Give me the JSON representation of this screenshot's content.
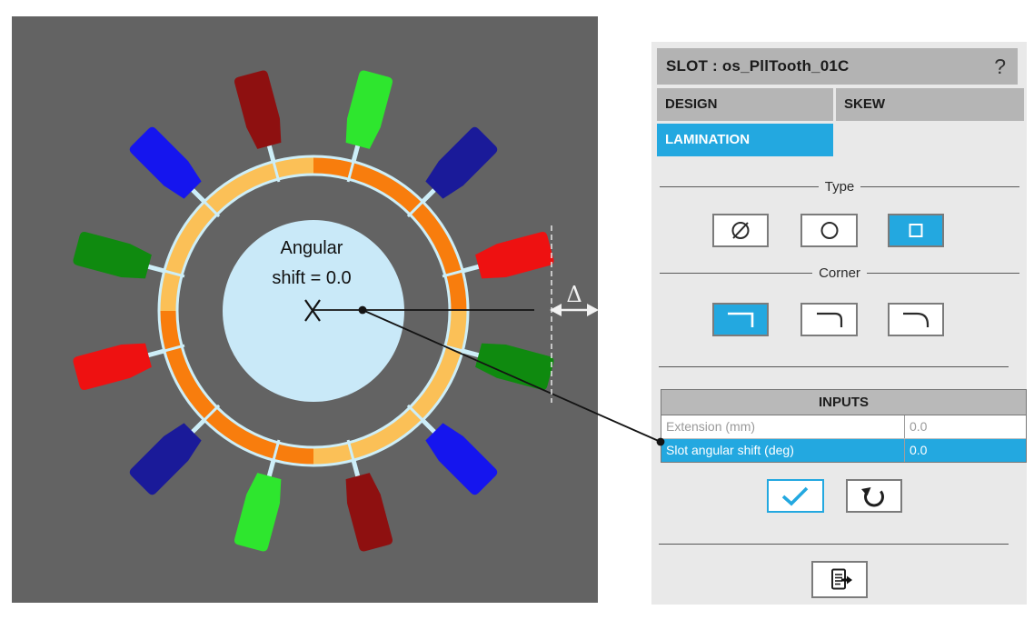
{
  "window": {
    "title": "SLOT : os_PllTooth_01C",
    "help_label": "?"
  },
  "tabs": {
    "design": "DESIGN",
    "skew": "SKEW",
    "lamination": "LAMINATION",
    "active_tab": "LAMINATION"
  },
  "sections": {
    "type_label": "Type",
    "corner_label": "Corner"
  },
  "type_options": {
    "options": [
      "none",
      "round",
      "square"
    ],
    "selected": "square"
  },
  "corner_options": {
    "options": [
      "sharp",
      "small-fillet",
      "large-fillet"
    ],
    "selected": "sharp"
  },
  "inputs": {
    "header": "INPUTS",
    "rows": [
      {
        "label": "Extension (mm)",
        "value": "0.0",
        "selected": false
      },
      {
        "label": "Slot angular shift (deg)",
        "value": "0.0",
        "selected": true
      }
    ]
  },
  "actions": {
    "apply_icon": "check-icon",
    "reset_icon": "rotate-ccw-icon",
    "exit_icon": "export-document-icon",
    "help_icon": "question-mark-icon"
  },
  "colors": {
    "accent": "#23a8e0",
    "panel_bg": "#e9e9e9",
    "bar_bg": "#b3b3b3",
    "canvas_bg": "#636363",
    "hub": "#c9e9f8",
    "ring_outline": "#cdeef8",
    "ring_orange": "#f87d0d",
    "ring_yellow": "#fbc057"
  },
  "diagram": {
    "hub_label": {
      "line1": "Angular",
      "line2": "shift = 0.0"
    },
    "delta_symbol": "Δ",
    "ring_segments": [
      {
        "start_deg": 0,
        "end_deg": 90,
        "color_key": "ring_orange"
      },
      {
        "start_deg": 90,
        "end_deg": 180,
        "color_key": "ring_yellow"
      },
      {
        "start_deg": 180,
        "end_deg": 270,
        "color_key": "ring_orange"
      },
      {
        "start_deg": 270,
        "end_deg": 360,
        "color_key": "ring_yellow"
      }
    ],
    "coils": [
      {
        "angle_deg": 345,
        "color": "#8e1010"
      },
      {
        "angle_deg": 15,
        "color": "#2ee62e"
      },
      {
        "angle_deg": 45,
        "color": "#1a1a99"
      },
      {
        "angle_deg": 75,
        "color": "#ee1111"
      },
      {
        "angle_deg": 105,
        "color": "#0f8a0f"
      },
      {
        "angle_deg": 135,
        "color": "#1515ee"
      },
      {
        "angle_deg": 165,
        "color": "#8e1010"
      },
      {
        "angle_deg": 195,
        "color": "#2ee62e"
      },
      {
        "angle_deg": 225,
        "color": "#1a1a99"
      },
      {
        "angle_deg": 255,
        "color": "#ee1111"
      },
      {
        "angle_deg": 285,
        "color": "#0f8a0f"
      },
      {
        "angle_deg": 315,
        "color": "#1515ee"
      }
    ]
  }
}
